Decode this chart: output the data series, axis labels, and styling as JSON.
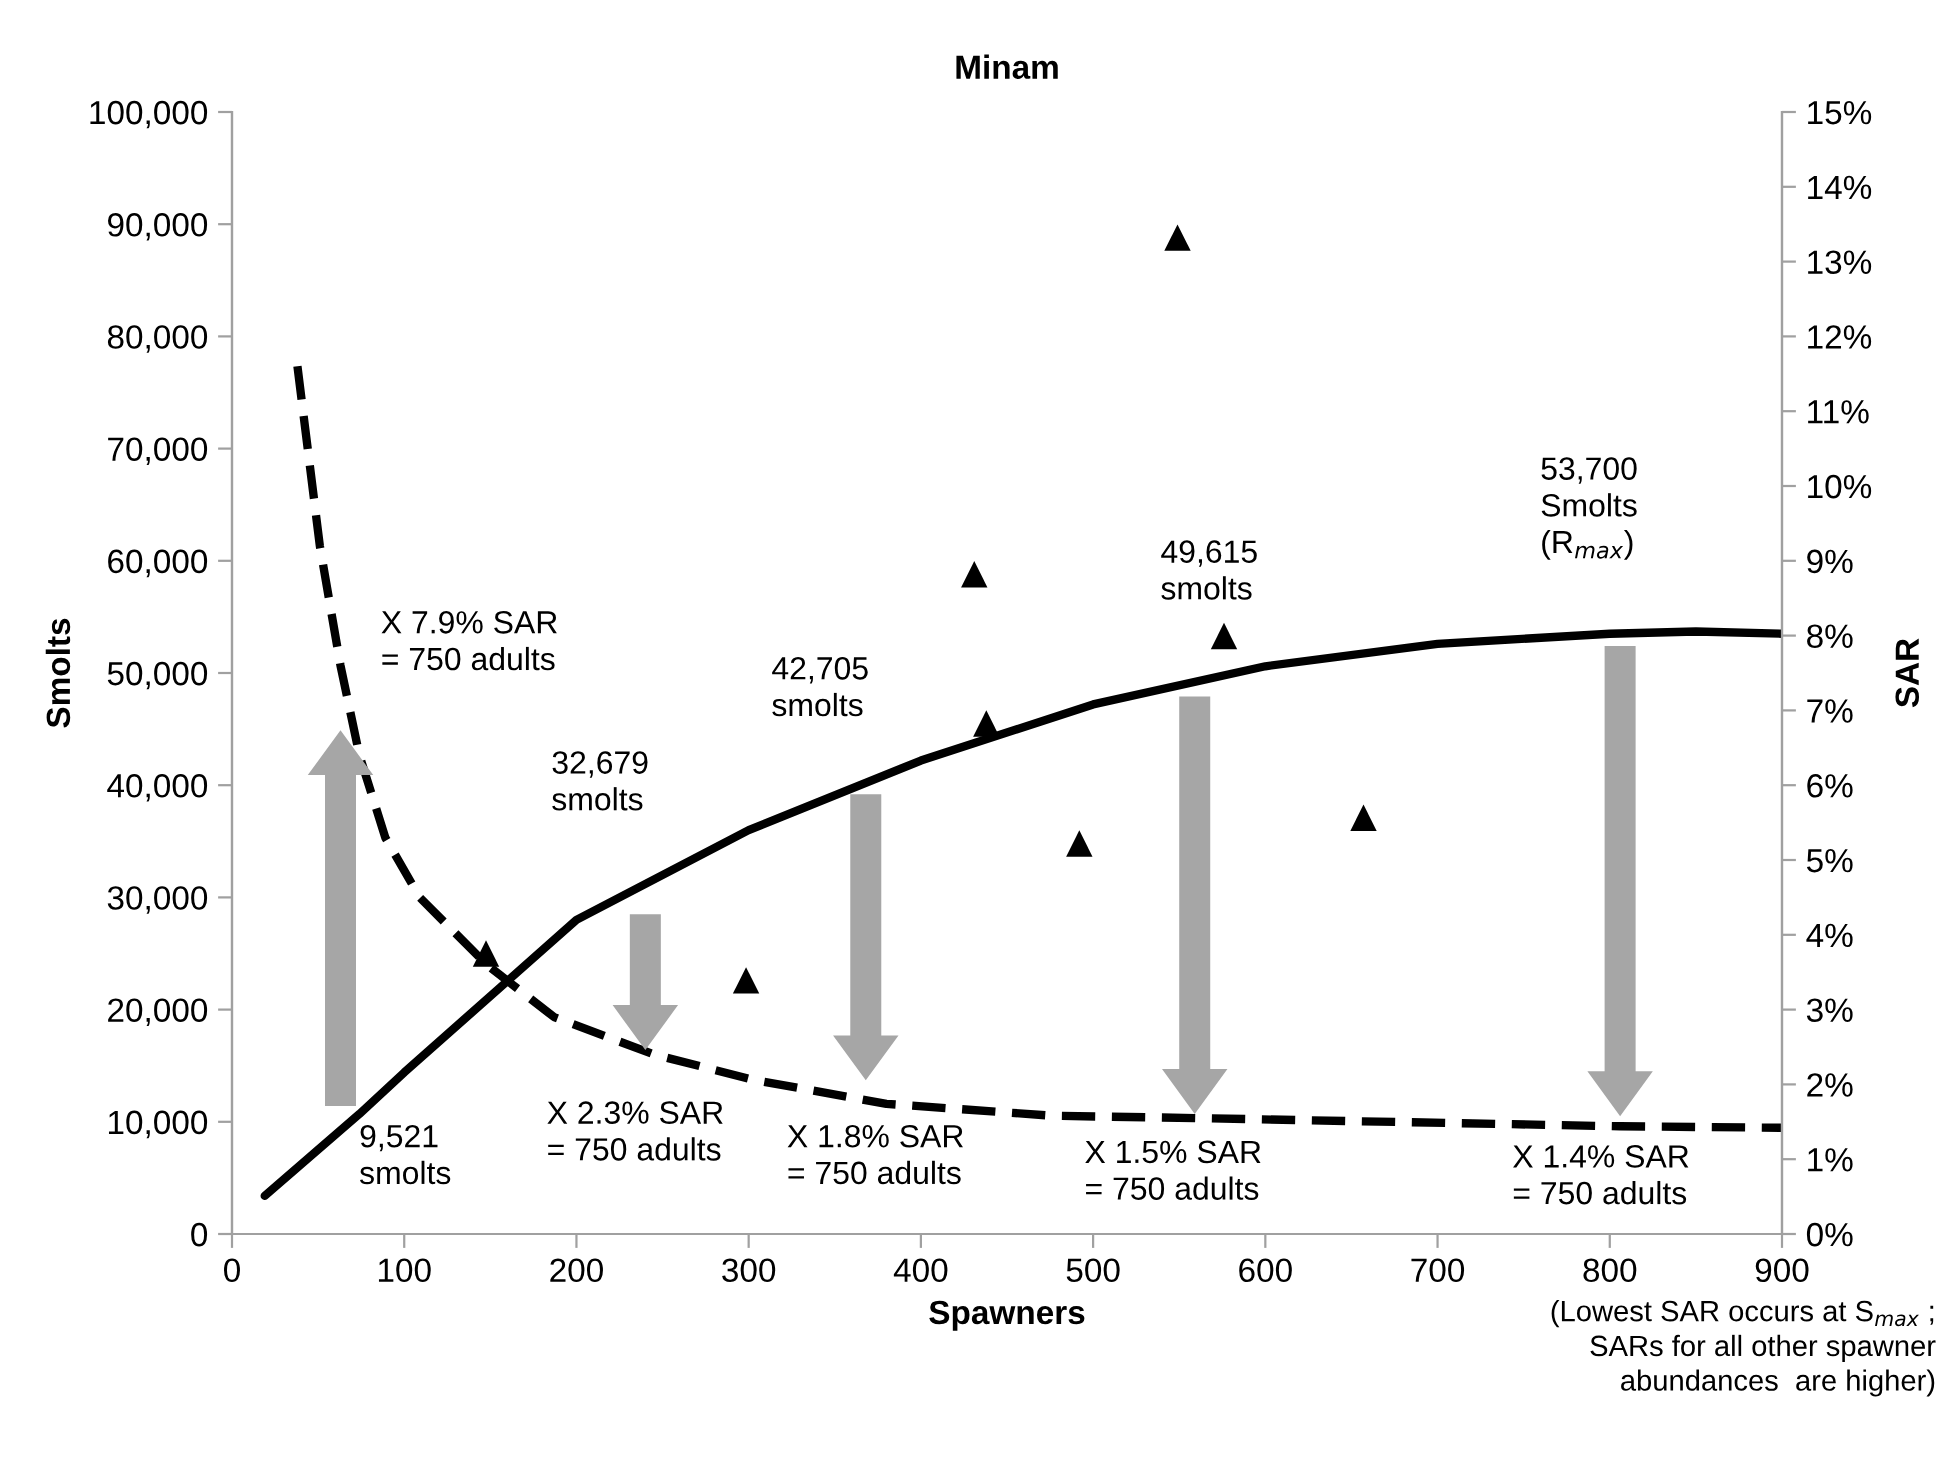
{
  "chart_data": {
    "type": "line",
    "title": "Minam",
    "xlabel": "Spawners",
    "ylabel": "Smolts",
    "y2label": "SAR",
    "xlim": [
      0,
      900
    ],
    "xticks": [
      0,
      100,
      200,
      300,
      400,
      500,
      600,
      700,
      800,
      900
    ],
    "ylim": [
      0,
      100000
    ],
    "yticks": [
      {
        "value": 0,
        "label": "0"
      },
      {
        "value": 10000,
        "label": "10,000"
      },
      {
        "value": 20000,
        "label": "20,000"
      },
      {
        "value": 30000,
        "label": "30,000"
      },
      {
        "value": 40000,
        "label": "40,000"
      },
      {
        "value": 50000,
        "label": "50,000"
      },
      {
        "value": 60000,
        "label": "60,000"
      },
      {
        "value": 70000,
        "label": "70,000"
      },
      {
        "value": 80000,
        "label": "80,000"
      },
      {
        "value": 90000,
        "label": "90,000"
      },
      {
        "value": 100000,
        "label": "100,000"
      }
    ],
    "y2lim": [
      0,
      15
    ],
    "y2ticks": [
      {
        "value": 0,
        "label": "0%"
      },
      {
        "value": 1,
        "label": "1%"
      },
      {
        "value": 2,
        "label": "2%"
      },
      {
        "value": 3,
        "label": "3%"
      },
      {
        "value": 4,
        "label": "4%"
      },
      {
        "value": 5,
        "label": "5%"
      },
      {
        "value": 6,
        "label": "6%"
      },
      {
        "value": 7,
        "label": "7%"
      },
      {
        "value": 8,
        "label": "8%"
      },
      {
        "value": 9,
        "label": "9%"
      },
      {
        "value": 10,
        "label": "10%"
      },
      {
        "value": 11,
        "label": "11%"
      },
      {
        "value": 12,
        "label": "12%"
      },
      {
        "value": 13,
        "label": "13%"
      },
      {
        "value": 14,
        "label": "14%"
      },
      {
        "value": 15,
        "label": "15%"
      }
    ],
    "grid": false,
    "series": [
      {
        "color": "#000000",
        "line_style": "solid",
        "marker": "none",
        "x": [
          19,
          74,
          100,
          200,
          300,
          400,
          500,
          600,
          700,
          800,
          850,
          900
        ],
        "values": [
          3400,
          10700,
          14400,
          28000,
          36000,
          42200,
          47200,
          50600,
          52600,
          53500,
          53700,
          53500
        ]
      },
      {
        "axis": "y2",
        "color": "#000000",
        "line_style": "dashed",
        "marker": "none",
        "x": [
          38,
          51,
          63,
          74,
          89,
          109,
          148,
          187,
          245,
          303,
          380,
          477,
          559,
          806,
          900
        ],
        "values": [
          11.6,
          9.2,
          7.6,
          6.4,
          5.3,
          4.5,
          3.6,
          2.9,
          2.4,
          2.06,
          1.74,
          1.58,
          1.55,
          1.44,
          1.42
        ]
      },
      {
        "type": "scatter",
        "color": "#000000",
        "marker": "triangle",
        "x": [
          147.5,
          298.5,
          431,
          438,
          492,
          549,
          576,
          657
        ],
        "values": [
          25000,
          22600,
          58800,
          45500,
          34800,
          88800,
          53300,
          37100
        ]
      }
    ],
    "annotations": [
      "X 7.9% SAR\n= 750 adults",
      "32,679\nsmolts",
      "42,705\nsmolts",
      "49,615\nsmolts",
      "53,700\nSmolts\n(R$_{max}$)",
      "9,521\nsmolts",
      "X 2.3% SAR\n= 750 adults",
      "X 1.8% SAR\n= 750 adults",
      "X 1.5% SAR\n= 750 adults",
      "X 1.4% SAR\n= 750 adults",
      "(Lowest SAR occurs at S$_{max}$ ;\nSARs for all other spawner\nabundances  are higher)"
    ]
  }
}
